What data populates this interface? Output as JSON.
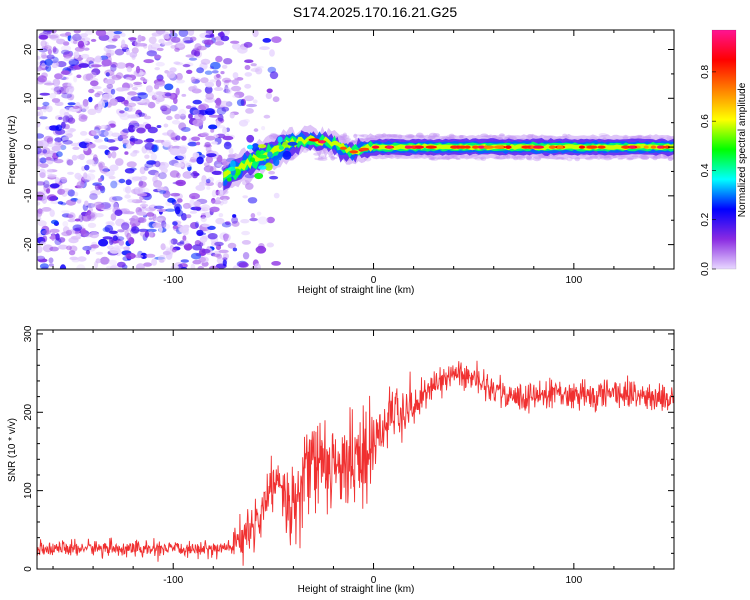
{
  "title": "S174.2025.170.16.21.G25",
  "chart_data": [
    {
      "type": "heatmap",
      "title": "S174.2025.170.16.21.G25",
      "xlabel": "Height of straight line (km)",
      "ylabel": "Frequency (Hz)",
      "xlim": [
        -168,
        150
      ],
      "ylim": [
        -25,
        24
      ],
      "xticks": [
        -100,
        0,
        100
      ],
      "yticks": [
        -20,
        -10,
        0,
        10,
        20
      ],
      "colorbar": {
        "label": "Normalized spectral amplitude",
        "range": [
          0.0,
          0.97
        ],
        "ticks": [
          0.0,
          0.2,
          0.4,
          0.6,
          0.8
        ],
        "colormap": [
          "#e8d8ff",
          "#8a2be2",
          "#0000ff",
          "#00ffff",
          "#00ff00",
          "#ffff00",
          "#ff8000",
          "#ff0000",
          "#ff1493"
        ]
      },
      "description_points": {
        "noise_region_x": [
          -168,
          -48
        ],
        "signal_line": [
          {
            "x": -75,
            "y": -6
          },
          {
            "x": -60,
            "y": -3
          },
          {
            "x": -50,
            "y": -1
          },
          {
            "x": -40,
            "y": 1
          },
          {
            "x": -30,
            "y": 1.5
          },
          {
            "x": -20,
            "y": 0.5
          },
          {
            "x": -10,
            "y": -1
          },
          {
            "x": 0,
            "y": 0
          },
          {
            "x": 25,
            "y": 0
          },
          {
            "x": 50,
            "y": 0
          },
          {
            "x": 100,
            "y": 0
          },
          {
            "x": 150,
            "y": 0
          }
        ]
      }
    },
    {
      "type": "line",
      "xlabel": "Height of straight line (km)",
      "ylabel": "SNR (10 * v/v)",
      "xlim": [
        -168,
        150
      ],
      "ylim": [
        0,
        305
      ],
      "xticks": [
        -100,
        0,
        100
      ],
      "yticks": [
        0,
        100,
        200,
        300
      ],
      "color": "#f03030",
      "series": [
        {
          "x": [
            -168,
            -140,
            -110,
            -85,
            -70,
            -62,
            -55,
            -50,
            -45,
            -42,
            -38,
            -32,
            -26,
            -20,
            -14,
            -8,
            -3,
            0,
            5,
            12,
            20,
            30,
            40,
            50,
            60,
            75,
            90,
            105,
            120,
            135,
            150
          ],
          "values": [
            25,
            27,
            25,
            25,
            28,
            45,
            80,
            110,
            100,
            70,
            90,
            130,
            140,
            130,
            130,
            150,
            130,
            150,
            190,
            200,
            210,
            235,
            250,
            245,
            230,
            215,
            225,
            220,
            225,
            220,
            215
          ]
        }
      ]
    }
  ]
}
